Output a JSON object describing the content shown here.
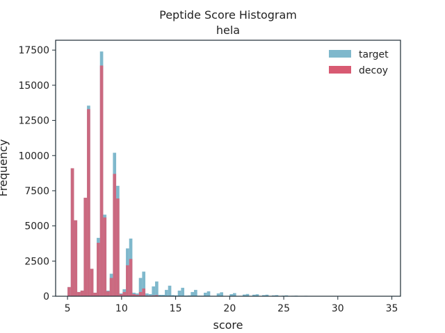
{
  "chart_data": {
    "type": "bar",
    "title": "Peptide Score Histogram",
    "subtitle": "hela",
    "xlabel": "score",
    "ylabel": "Frequency",
    "xlim": [
      3.9,
      35.8
    ],
    "ylim": [
      0,
      18200
    ],
    "xticks": [
      5,
      10,
      15,
      20,
      25,
      30,
      35
    ],
    "yticks": [
      0,
      2500,
      5000,
      7500,
      10000,
      12500,
      15000,
      17500
    ],
    "ytick_labels": [
      "0",
      "2500",
      "5000",
      "7500",
      "10000",
      "12500",
      "15000",
      "17500"
    ],
    "legend_position": "top-right",
    "bin_width": 0.3,
    "series": [
      {
        "name": "target",
        "color": "#7fb8cc",
        "bins": [
          [
            5.0,
            650
          ],
          [
            5.3,
            9100
          ],
          [
            5.6,
            5400
          ],
          [
            5.9,
            300
          ],
          [
            6.2,
            400
          ],
          [
            6.5,
            7000
          ],
          [
            6.8,
            13550
          ],
          [
            7.1,
            1950
          ],
          [
            7.4,
            250
          ],
          [
            7.7,
            4150
          ],
          [
            8.0,
            17400
          ],
          [
            8.3,
            5800
          ],
          [
            8.6,
            400
          ],
          [
            8.9,
            1600
          ],
          [
            9.2,
            10200
          ],
          [
            9.5,
            7850
          ],
          [
            9.8,
            200
          ],
          [
            10.1,
            500
          ],
          [
            10.4,
            3400
          ],
          [
            10.7,
            4100
          ],
          [
            11.0,
            250
          ],
          [
            11.3,
            200
          ],
          [
            11.6,
            1300
          ],
          [
            11.9,
            1750
          ],
          [
            12.2,
            200
          ],
          [
            12.5,
            150
          ],
          [
            12.8,
            700
          ],
          [
            13.1,
            1050
          ],
          [
            13.4,
            100
          ],
          [
            13.7,
            100
          ],
          [
            14.0,
            450
          ],
          [
            14.3,
            750
          ],
          [
            14.6,
            80
          ],
          [
            14.9,
            60
          ],
          [
            15.2,
            400
          ],
          [
            15.5,
            600
          ],
          [
            15.8,
            50
          ],
          [
            16.1,
            60
          ],
          [
            16.4,
            300
          ],
          [
            16.7,
            450
          ],
          [
            17.0,
            40
          ],
          [
            17.3,
            40
          ],
          [
            17.6,
            250
          ],
          [
            17.9,
            350
          ],
          [
            18.2,
            30
          ],
          [
            18.5,
            30
          ],
          [
            18.8,
            200
          ],
          [
            19.1,
            280
          ],
          [
            19.4,
            20
          ],
          [
            19.7,
            20
          ],
          [
            20.0,
            150
          ],
          [
            20.3,
            220
          ],
          [
            20.9,
            15
          ],
          [
            21.2,
            120
          ],
          [
            21.5,
            160
          ],
          [
            22.1,
            110
          ],
          [
            22.4,
            140
          ],
          [
            23.0,
            80
          ],
          [
            23.3,
            110
          ],
          [
            23.9,
            60
          ],
          [
            24.2,
            80
          ],
          [
            24.8,
            40
          ],
          [
            25.1,
            60
          ],
          [
            25.7,
            30
          ],
          [
            26.0,
            40
          ],
          [
            26.6,
            25
          ],
          [
            26.9,
            30
          ],
          [
            27.5,
            20
          ],
          [
            27.8,
            20
          ],
          [
            28.4,
            15
          ],
          [
            29.0,
            10
          ],
          [
            29.6,
            10
          ],
          [
            30.2,
            8
          ]
        ]
      },
      {
        "name": "decoy",
        "color": "#d85a72",
        "bins": [
          [
            5.0,
            650
          ],
          [
            5.3,
            9100
          ],
          [
            5.6,
            5400
          ],
          [
            5.9,
            300
          ],
          [
            6.2,
            400
          ],
          [
            6.5,
            7000
          ],
          [
            6.8,
            13300
          ],
          [
            7.1,
            1950
          ],
          [
            7.4,
            250
          ],
          [
            7.7,
            3800
          ],
          [
            8.0,
            16400
          ],
          [
            8.3,
            5600
          ],
          [
            8.6,
            350
          ],
          [
            8.9,
            1300
          ],
          [
            9.2,
            8700
          ],
          [
            9.5,
            6950
          ],
          [
            9.8,
            150
          ],
          [
            10.1,
            300
          ],
          [
            10.4,
            2200
          ],
          [
            10.7,
            2650
          ],
          [
            11.0,
            150
          ],
          [
            11.3,
            100
          ],
          [
            11.6,
            300
          ],
          [
            11.9,
            550
          ],
          [
            12.2,
            50
          ],
          [
            12.5,
            40
          ],
          [
            12.8,
            60
          ],
          [
            13.1,
            80
          ],
          [
            14.0,
            20
          ],
          [
            14.3,
            30
          ]
        ]
      }
    ]
  }
}
